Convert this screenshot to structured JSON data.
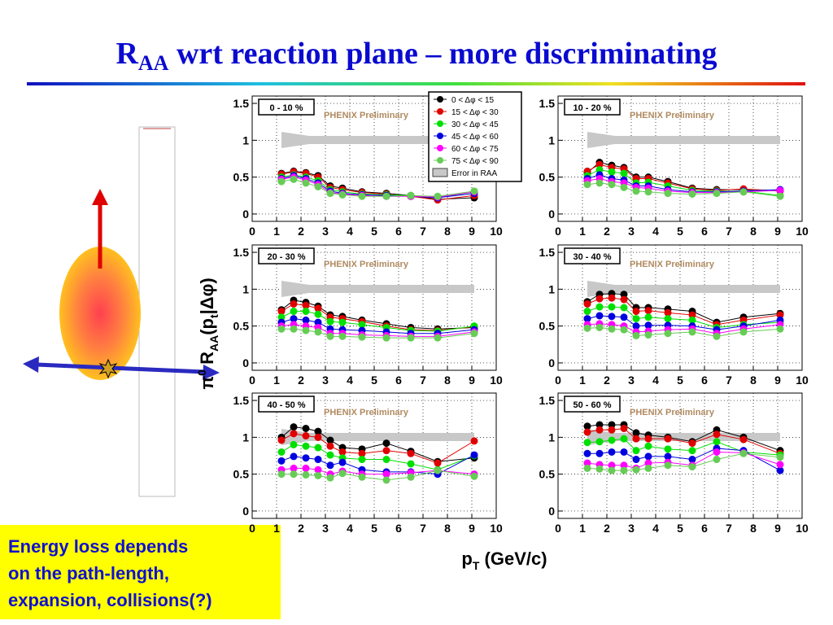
{
  "slide": {
    "title": {
      "main": "R",
      "sub": "AA",
      "rest": " wrt reaction plane – more discriminating"
    },
    "y_label": {
      "a": "π",
      "b": "0",
      "c": " R",
      "d": "AA",
      "e": "(p",
      "f": "t",
      "g": "|Δφ)"
    },
    "x_label": {
      "a": "p",
      "b": "T",
      "c": " (GeV/c)"
    },
    "note": [
      "Energy loss depends",
      "on the path-length,",
      "expansion, collisions(?)"
    ]
  },
  "chart_data": [
    {
      "type": "scatter",
      "label": "0 - 10 %",
      "annotation": "PHENIX Preliminary",
      "band": "Error in RAA",
      "xlim": [
        0,
        10
      ],
      "ylim": [
        -0.1,
        1.6
      ],
      "xticks": [
        0,
        1,
        2,
        3,
        4,
        5,
        6,
        7,
        8,
        9,
        10
      ],
      "yticks": [
        0,
        0.5,
        1,
        1.5
      ],
      "grid": true,
      "x": [
        1.2,
        1.7,
        2.2,
        2.7,
        3.2,
        3.7,
        4.5,
        5.5,
        6.5,
        7.6,
        9.1
      ],
      "series": [
        {
          "name": "0 < Δφ < 15",
          "color": "#000000",
          "values": [
            0.55,
            0.58,
            0.56,
            0.52,
            0.38,
            0.35,
            0.3,
            0.28,
            0.25,
            0.2,
            0.22
          ]
        },
        {
          "name": "15 < Δφ < 30",
          "color": "#e00000",
          "values": [
            0.54,
            0.57,
            0.55,
            0.5,
            0.36,
            0.33,
            0.29,
            0.27,
            0.24,
            0.19,
            0.25
          ]
        },
        {
          "name": "30 < Δφ < 45",
          "color": "#00e000",
          "values": [
            0.5,
            0.53,
            0.5,
            0.45,
            0.33,
            0.3,
            0.27,
            0.26,
            0.25,
            0.22,
            0.3
          ]
        },
        {
          "name": "45 < Δφ < 60",
          "color": "#0000e0",
          "values": [
            0.48,
            0.52,
            0.48,
            0.42,
            0.31,
            0.28,
            0.26,
            0.25,
            0.24,
            0.22,
            0.28
          ]
        },
        {
          "name": "60 < Δφ < 75",
          "color": "#ff00ff",
          "values": [
            0.47,
            0.5,
            0.46,
            0.4,
            0.29,
            0.27,
            0.25,
            0.24,
            0.24,
            0.23,
            0.3
          ]
        },
        {
          "name": "75 < Δφ < 90",
          "color": "#66cc55",
          "values": [
            0.44,
            0.47,
            0.42,
            0.37,
            0.28,
            0.26,
            0.24,
            0.24,
            0.25,
            0.24,
            0.31
          ]
        }
      ]
    },
    {
      "type": "scatter",
      "label": "10 - 20 %",
      "annotation": "PHENIX Preliminary",
      "xlim": [
        0,
        10
      ],
      "ylim": [
        -0.1,
        1.6
      ],
      "xticks": [
        0,
        1,
        2,
        3,
        4,
        5,
        6,
        7,
        8,
        9,
        10
      ],
      "yticks": [
        0,
        0.5,
        1,
        1.5
      ],
      "grid": true,
      "x": [
        1.2,
        1.7,
        2.2,
        2.7,
        3.2,
        3.7,
        4.5,
        5.5,
        6.5,
        7.6,
        9.1
      ],
      "series": [
        {
          "color": "#000000",
          "values": [
            0.56,
            0.7,
            0.66,
            0.63,
            0.5,
            0.5,
            0.44,
            0.35,
            0.33,
            0.33,
            0.32
          ]
        },
        {
          "color": "#e00000",
          "values": [
            0.58,
            0.67,
            0.63,
            0.61,
            0.48,
            0.48,
            0.42,
            0.34,
            0.32,
            0.34,
            0.31
          ]
        },
        {
          "color": "#00e000",
          "values": [
            0.52,
            0.6,
            0.57,
            0.55,
            0.42,
            0.43,
            0.38,
            0.32,
            0.31,
            0.31,
            0.25
          ]
        },
        {
          "color": "#0000e0",
          "values": [
            0.48,
            0.53,
            0.48,
            0.46,
            0.38,
            0.38,
            0.33,
            0.3,
            0.3,
            0.31,
            0.33
          ]
        },
        {
          "color": "#ff00ff",
          "values": [
            0.45,
            0.48,
            0.44,
            0.42,
            0.36,
            0.35,
            0.31,
            0.29,
            0.29,
            0.3,
            0.32
          ]
        },
        {
          "color": "#66cc55",
          "values": [
            0.4,
            0.42,
            0.4,
            0.36,
            0.31,
            0.3,
            0.28,
            0.27,
            0.28,
            0.3,
            0.24
          ]
        }
      ]
    },
    {
      "type": "scatter",
      "label": "20 - 30 %",
      "annotation": "PHENIX Preliminary",
      "xlim": [
        0,
        10
      ],
      "ylim": [
        -0.1,
        1.6
      ],
      "xticks": [
        0,
        1,
        2,
        3,
        4,
        5,
        6,
        7,
        8,
        9,
        10
      ],
      "yticks": [
        0,
        0.5,
        1,
        1.5
      ],
      "grid": true,
      "x": [
        1.2,
        1.7,
        2.2,
        2.7,
        3.2,
        3.7,
        4.5,
        5.5,
        6.5,
        7.6,
        9.1
      ],
      "series": [
        {
          "color": "#000000",
          "values": [
            0.72,
            0.85,
            0.82,
            0.77,
            0.65,
            0.63,
            0.58,
            0.53,
            0.48,
            0.46,
            0.48
          ]
        },
        {
          "color": "#e00000",
          "values": [
            0.7,
            0.8,
            0.78,
            0.74,
            0.62,
            0.6,
            0.56,
            0.5,
            0.45,
            0.44,
            0.49
          ]
        },
        {
          "color": "#00e000",
          "values": [
            0.62,
            0.7,
            0.7,
            0.66,
            0.56,
            0.55,
            0.52,
            0.48,
            0.44,
            0.43,
            0.5
          ]
        },
        {
          "color": "#0000e0",
          "values": [
            0.55,
            0.6,
            0.58,
            0.55,
            0.46,
            0.45,
            0.44,
            0.42,
            0.4,
            0.4,
            0.45
          ]
        },
        {
          "color": "#ff00ff",
          "values": [
            0.5,
            0.52,
            0.5,
            0.48,
            0.4,
            0.4,
            0.38,
            0.37,
            0.36,
            0.36,
            0.42
          ]
        },
        {
          "color": "#66cc55",
          "values": [
            0.46,
            0.46,
            0.44,
            0.42,
            0.36,
            0.36,
            0.35,
            0.34,
            0.34,
            0.34,
            0.4
          ]
        }
      ]
    },
    {
      "type": "scatter",
      "label": "30 - 40 %",
      "annotation": "PHENIX Preliminary",
      "xlim": [
        0,
        10
      ],
      "ylim": [
        -0.1,
        1.6
      ],
      "xticks": [
        0,
        1,
        2,
        3,
        4,
        5,
        6,
        7,
        8,
        9,
        10
      ],
      "yticks": [
        0,
        0.5,
        1,
        1.5
      ],
      "grid": true,
      "x": [
        1.2,
        1.7,
        2.2,
        2.7,
        3.2,
        3.7,
        4.5,
        5.5,
        6.5,
        7.6,
        9.1
      ],
      "series": [
        {
          "color": "#000000",
          "values": [
            0.83,
            0.93,
            0.94,
            0.93,
            0.75,
            0.75,
            0.73,
            0.7,
            0.55,
            0.62,
            0.67
          ]
        },
        {
          "color": "#e00000",
          "values": [
            0.8,
            0.87,
            0.88,
            0.86,
            0.7,
            0.71,
            0.68,
            0.65,
            0.52,
            0.58,
            0.65
          ]
        },
        {
          "color": "#00e000",
          "values": [
            0.7,
            0.76,
            0.76,
            0.75,
            0.6,
            0.62,
            0.6,
            0.58,
            0.48,
            0.52,
            0.55
          ]
        },
        {
          "color": "#0000e0",
          "values": [
            0.6,
            0.64,
            0.63,
            0.62,
            0.5,
            0.51,
            0.51,
            0.5,
            0.45,
            0.5,
            0.58
          ]
        },
        {
          "color": "#ff00ff",
          "values": [
            0.52,
            0.53,
            0.52,
            0.5,
            0.42,
            0.43,
            0.45,
            0.46,
            0.4,
            0.46,
            0.52
          ]
        },
        {
          "color": "#66cc55",
          "values": [
            0.47,
            0.48,
            0.46,
            0.45,
            0.37,
            0.38,
            0.4,
            0.42,
            0.36,
            0.42,
            0.46
          ]
        }
      ]
    },
    {
      "type": "scatter",
      "label": "40 - 50 %",
      "annotation": "PHENIX Preliminary",
      "xlim": [
        0,
        10
      ],
      "ylim": [
        -0.1,
        1.6
      ],
      "xticks": [
        0,
        1,
        2,
        3,
        4,
        5,
        6,
        7,
        8,
        9,
        10
      ],
      "yticks": [
        0,
        0.5,
        1,
        1.5
      ],
      "grid": true,
      "x": [
        1.2,
        1.7,
        2.2,
        2.7,
        3.2,
        3.7,
        4.5,
        5.5,
        6.5,
        7.6,
        9.1
      ],
      "series": [
        {
          "color": "#000000",
          "values": [
            1.0,
            1.14,
            1.12,
            1.08,
            0.96,
            0.86,
            0.84,
            0.92,
            0.81,
            0.67,
            0.72
          ]
        },
        {
          "color": "#e00000",
          "values": [
            0.96,
            1.05,
            1.02,
            1.0,
            0.88,
            0.8,
            0.78,
            0.82,
            0.78,
            0.65,
            0.95
          ]
        },
        {
          "color": "#00e000",
          "values": [
            0.8,
            0.9,
            0.88,
            0.86,
            0.76,
            0.72,
            0.7,
            0.7,
            0.64,
            0.56,
            0.75
          ]
        },
        {
          "color": "#0000e0",
          "values": [
            0.68,
            0.74,
            0.72,
            0.7,
            0.62,
            0.66,
            0.56,
            0.53,
            0.53,
            0.5,
            0.76
          ]
        },
        {
          "color": "#ff00ff",
          "values": [
            0.56,
            0.58,
            0.58,
            0.56,
            0.5,
            0.54,
            0.5,
            0.5,
            0.52,
            0.55,
            0.5
          ]
        },
        {
          "color": "#66cc55",
          "values": [
            0.5,
            0.5,
            0.49,
            0.48,
            0.45,
            0.51,
            0.46,
            0.42,
            0.46,
            0.55,
            0.47
          ]
        }
      ]
    },
    {
      "type": "scatter",
      "label": "50 - 60 %",
      "annotation": "PHENIX Preliminary",
      "xlim": [
        0,
        10
      ],
      "ylim": [
        -0.1,
        1.6
      ],
      "xticks": [
        0,
        1,
        2,
        3,
        4,
        5,
        6,
        7,
        8,
        9,
        10
      ],
      "yticks": [
        0,
        0.5,
        1,
        1.5
      ],
      "grid": true,
      "x": [
        1.2,
        1.7,
        2.2,
        2.7,
        3.2,
        3.7,
        4.5,
        5.5,
        6.5,
        7.6,
        9.1
      ],
      "series": [
        {
          "color": "#000000",
          "values": [
            1.15,
            1.17,
            1.17,
            1.17,
            1.06,
            1.03,
            1.0,
            0.94,
            1.1,
            1.0,
            0.82
          ]
        },
        {
          "color": "#e00000",
          "values": [
            1.07,
            1.1,
            1.1,
            1.12,
            0.98,
            0.98,
            0.98,
            0.92,
            1.04,
            0.97,
            0.78
          ]
        },
        {
          "color": "#00e000",
          "values": [
            0.93,
            0.94,
            0.96,
            0.98,
            0.82,
            0.88,
            0.84,
            0.82,
            0.94,
            0.8,
            0.76
          ]
        },
        {
          "color": "#0000e0",
          "values": [
            0.78,
            0.78,
            0.8,
            0.8,
            0.7,
            0.74,
            0.74,
            0.7,
            0.85,
            0.82,
            0.55
          ]
        },
        {
          "color": "#ff00ff",
          "values": [
            0.65,
            0.63,
            0.62,
            0.62,
            0.58,
            0.65,
            0.66,
            0.62,
            0.8,
            0.79,
            0.63
          ]
        },
        {
          "color": "#66cc55",
          "values": [
            0.58,
            0.57,
            0.55,
            0.55,
            0.56,
            0.58,
            0.62,
            0.6,
            0.7,
            0.78,
            0.73
          ]
        }
      ]
    }
  ]
}
